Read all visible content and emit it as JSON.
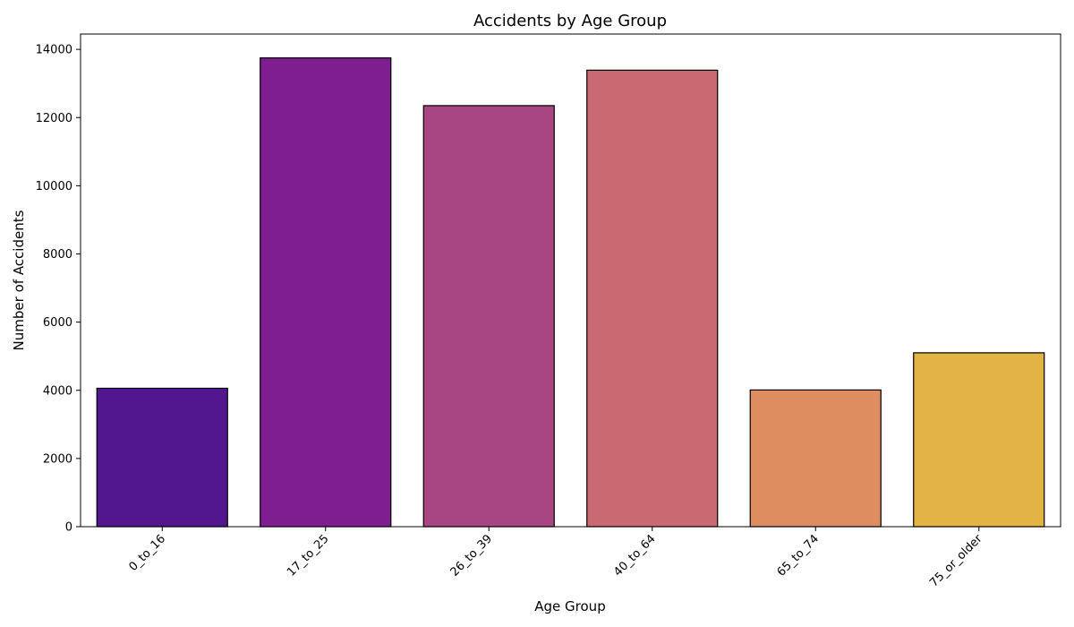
{
  "chart_data": {
    "type": "bar",
    "title": "Accidents by Age Group",
    "xlabel": "Age Group",
    "ylabel": "Number of Accidents",
    "categories": [
      "0_to_16",
      "17_to_25",
      "26_to_39",
      "40_to_64",
      "65_to_74",
      "75_or_older"
    ],
    "values": [
      4060,
      13750,
      12350,
      13390,
      4010,
      5100
    ],
    "colors": [
      "#52168f",
      "#7e1e91",
      "#a84683",
      "#c96a72",
      "#dd8d5f",
      "#e3b345"
    ],
    "ylim": [
      0,
      14450
    ],
    "yticks": [
      0,
      2000,
      4000,
      6000,
      8000,
      10000,
      12000,
      14000
    ],
    "grid": false,
    "legend": "none",
    "bar_edge_color": "#000000"
  }
}
